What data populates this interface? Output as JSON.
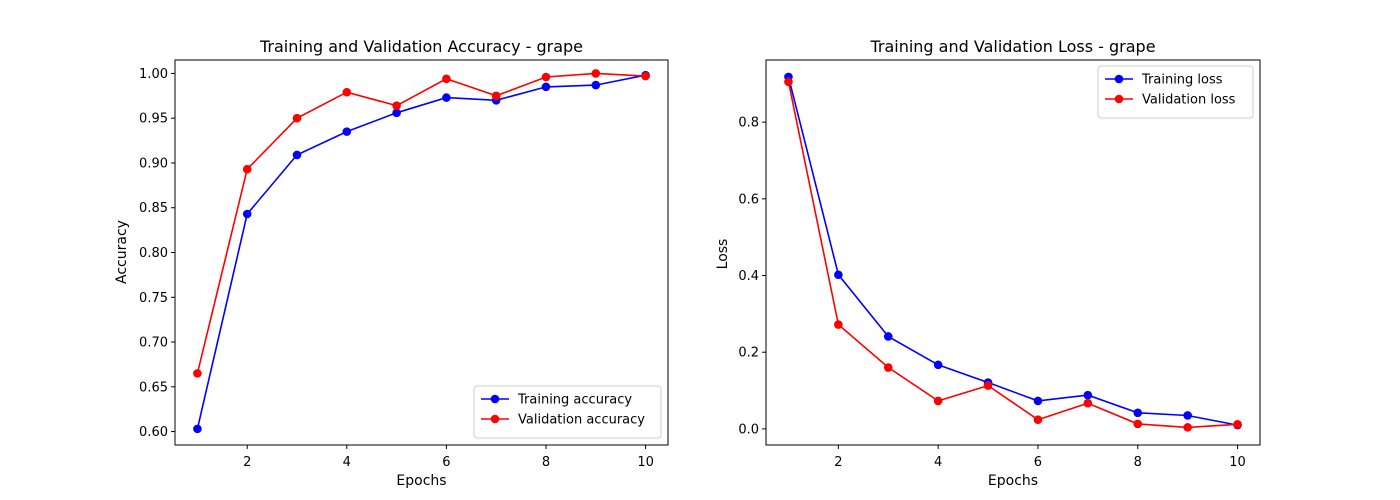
{
  "chart_data": [
    {
      "type": "line",
      "title": "Training and Validation Accuracy - grape",
      "xlabel": "Epochs",
      "ylabel": "Accuracy",
      "xlim": [
        0.55,
        10.45
      ],
      "ylim": [
        0.585,
        1.015
      ],
      "x_ticks": [
        2,
        4,
        6,
        8,
        10
      ],
      "y_ticks": [
        0.6,
        0.65,
        0.7,
        0.75,
        0.8,
        0.85,
        0.9,
        0.95,
        1.0
      ],
      "y_tick_labels": [
        "0.60",
        "0.65",
        "0.70",
        "0.75",
        "0.80",
        "0.85",
        "0.90",
        "0.95",
        "1.00"
      ],
      "x": [
        1,
        2,
        3,
        4,
        5,
        6,
        7,
        8,
        9,
        10
      ],
      "legend_position": "lower right",
      "grid": false,
      "series": [
        {
          "name": "Training accuracy",
          "color": "#0000ff",
          "values": [
            0.603,
            0.843,
            0.909,
            0.935,
            0.956,
            0.973,
            0.97,
            0.985,
            0.987,
            0.998
          ]
        },
        {
          "name": "Validation accuracy",
          "color": "#ff0000",
          "values": [
            0.665,
            0.893,
            0.95,
            0.979,
            0.964,
            0.994,
            0.975,
            0.996,
            1.0,
            0.997
          ]
        }
      ]
    },
    {
      "type": "line",
      "title": "Training and Validation Loss - grape",
      "xlabel": "Epochs",
      "ylabel": "Loss",
      "xlim": [
        0.55,
        10.45
      ],
      "ylim": [
        -0.042,
        0.962
      ],
      "x_ticks": [
        2,
        4,
        6,
        8,
        10
      ],
      "y_ticks": [
        0.0,
        0.2,
        0.4,
        0.6,
        0.8
      ],
      "y_tick_labels": [
        "0.0",
        "0.2",
        "0.4",
        "0.6",
        "0.8"
      ],
      "x": [
        1,
        2,
        3,
        4,
        5,
        6,
        7,
        8,
        9,
        10
      ],
      "legend_position": "upper right",
      "grid": false,
      "series": [
        {
          "name": "Training loss",
          "color": "#0000ff",
          "values": [
            0.918,
            0.402,
            0.241,
            0.167,
            0.121,
            0.073,
            0.088,
            0.042,
            0.035,
            0.01
          ]
        },
        {
          "name": "Validation loss",
          "color": "#ff0000",
          "values": [
            0.905,
            0.272,
            0.16,
            0.073,
            0.113,
            0.024,
            0.067,
            0.013,
            0.004,
            0.012
          ]
        }
      ]
    }
  ]
}
